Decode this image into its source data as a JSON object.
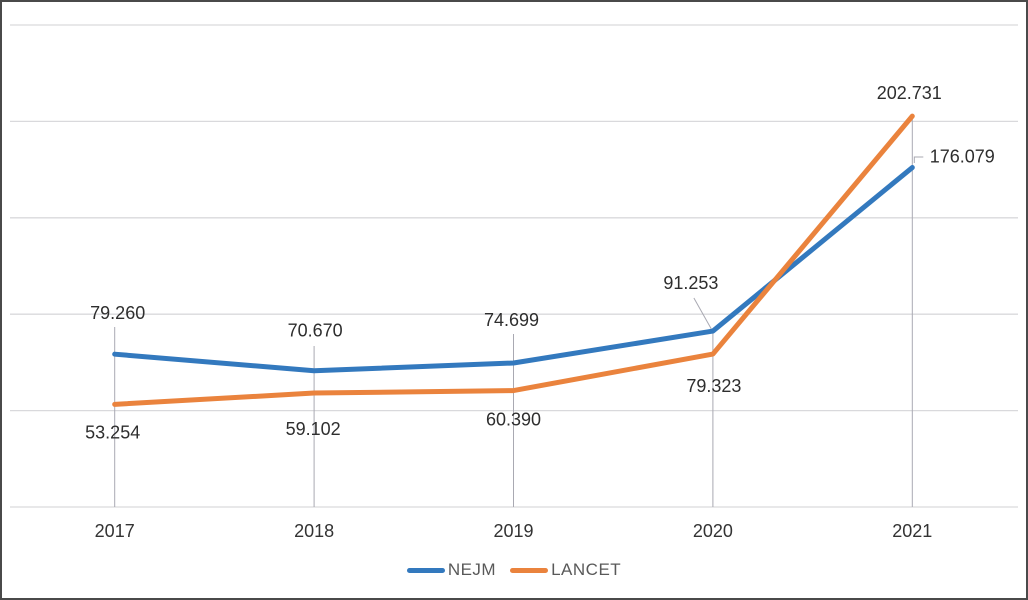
{
  "chart": {
    "background": "#ffffff",
    "frame_border_color": "#4a4a4a"
  },
  "chart_data": {
    "type": "line",
    "title": "",
    "xlabel": "",
    "ylabel": "",
    "categories": [
      "2017",
      "2018",
      "2019",
      "2020",
      "2021"
    ],
    "series": [
      {
        "name": "NEJM",
        "color": "#3379BE",
        "values": [
          79.26,
          70.67,
          74.699,
          91.253,
          176.079
        ],
        "labels": [
          "79.260",
          "70.670",
          "74.699",
          "91.253",
          "176.079"
        ]
      },
      {
        "name": "LANCET",
        "color": "#EA833D",
        "values": [
          53.254,
          59.102,
          60.39,
          79.323,
          202.731
        ],
        "labels": [
          "53.254",
          "59.102",
          "60.390",
          "79.323",
          "202.731"
        ]
      }
    ],
    "ylim": [
      0,
      250
    ],
    "gridline_step": 50,
    "y_axis_labels_visible": false,
    "grid": "horizontal",
    "legend_position": "bottom",
    "colors": {
      "gridline": "#D9D9DC",
      "leader_line": "#A9A9B2",
      "data_label": "#2e2e2e",
      "axis_label": "#333333",
      "legend_text": "#595959"
    }
  }
}
